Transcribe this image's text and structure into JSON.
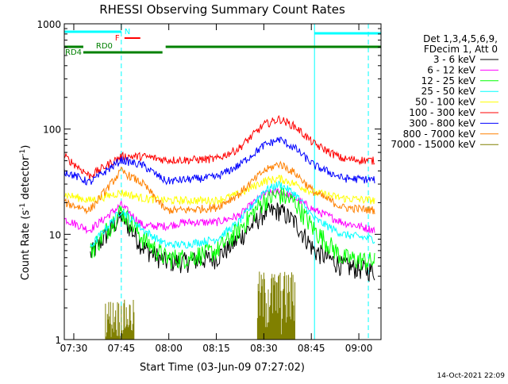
{
  "chart_data": {
    "type": "line",
    "title": "RHESSI Observing Summary Count Rates",
    "xlabel": "Start Time (03-Jun-09 07:27:02)",
    "ylabel_main": "Count Rate (s",
    "ylabel_sup1": "-1",
    "ylabel_mid": " detector",
    "ylabel_sup2": "-1",
    "ylabel_end": ")",
    "ylog": true,
    "xlim": [
      "07:27",
      "09:07"
    ],
    "ylim": [
      1,
      1000
    ],
    "x_ticks": [
      "07:30",
      "07:45",
      "08:00",
      "08:15",
      "08:30",
      "08:45",
      "09:00"
    ],
    "y_ticks": [
      "1",
      "10",
      "100",
      "1000"
    ],
    "legend_header": [
      "Det 1,3,4,5,6,9,",
      "FDecim 1, Att 0"
    ],
    "timestamp": "14-Oct-2021 22:09",
    "x_nodes": [
      "07:27",
      "07:35",
      "07:45",
      "07:52",
      "07:59",
      "08:05",
      "08:15",
      "08:22",
      "08:30",
      "08:35",
      "08:40",
      "08:46",
      "08:55",
      "09:05"
    ],
    "series": [
      {
        "name": "3 - 6 keV",
        "color": "#000000",
        "values": [
          null,
          6.3,
          15,
          7.5,
          5.5,
          5.5,
          6,
          9,
          16,
          17,
          13,
          7,
          5,
          4.5
        ]
      },
      {
        "name": "6 - 12 keV",
        "color": "#ff00ff",
        "values": [
          14,
          11,
          19,
          12,
          12,
          13,
          13,
          15,
          24,
          26,
          22,
          17,
          13,
          11
        ]
      },
      {
        "name": "12 - 25 keV",
        "color": "#00ff00",
        "values": [
          null,
          6.7,
          17,
          9,
          6,
          6,
          7,
          11,
          21,
          24,
          20,
          11,
          6,
          5.5
        ]
      },
      {
        "name": "25 - 50 keV",
        "color": "#00ffff",
        "values": [
          null,
          7.5,
          17,
          11,
          8,
          8,
          9,
          13,
          26,
          30,
          24,
          14,
          10,
          9
        ]
      },
      {
        "name": "50 - 100 keV",
        "color": "#ffff00",
        "values": [
          24,
          21,
          25,
          22,
          21,
          21,
          21,
          24,
          32,
          34,
          30,
          25,
          22,
          21
        ]
      },
      {
        "name": "100 - 300 keV",
        "color": "#ff0000",
        "values": [
          55,
          36,
          55,
          55,
          51,
          51,
          52,
          65,
          110,
          125,
          105,
          72,
          52,
          50
        ]
      },
      {
        "name": "300 - 800 keV",
        "color": "#0000ff",
        "values": [
          40,
          31,
          51,
          45,
          32,
          33,
          35,
          45,
          70,
          80,
          65,
          45,
          34,
          33
        ]
      },
      {
        "name": "800 - 7000 keV",
        "color": "#ff8000",
        "values": [
          20,
          17,
          40,
          30,
          17,
          17,
          18,
          24,
          40,
          47,
          38,
          25,
          18,
          17
        ]
      },
      {
        "name": "7000 - 15000 keV",
        "color": "#808000",
        "values": [
          null,
          null,
          null,
          null,
          null,
          null,
          null,
          null,
          null,
          null,
          null,
          null,
          null,
          null
        ]
      }
    ],
    "flags": {
      "rd4_label": "RD4",
      "rd0_label": "RD0",
      "f_label": "F",
      "n_label": "N"
    },
    "night_boundaries": [
      "07:27",
      "08:46"
    ],
    "saa_markers": [
      "07:45",
      "09:03"
    ]
  }
}
